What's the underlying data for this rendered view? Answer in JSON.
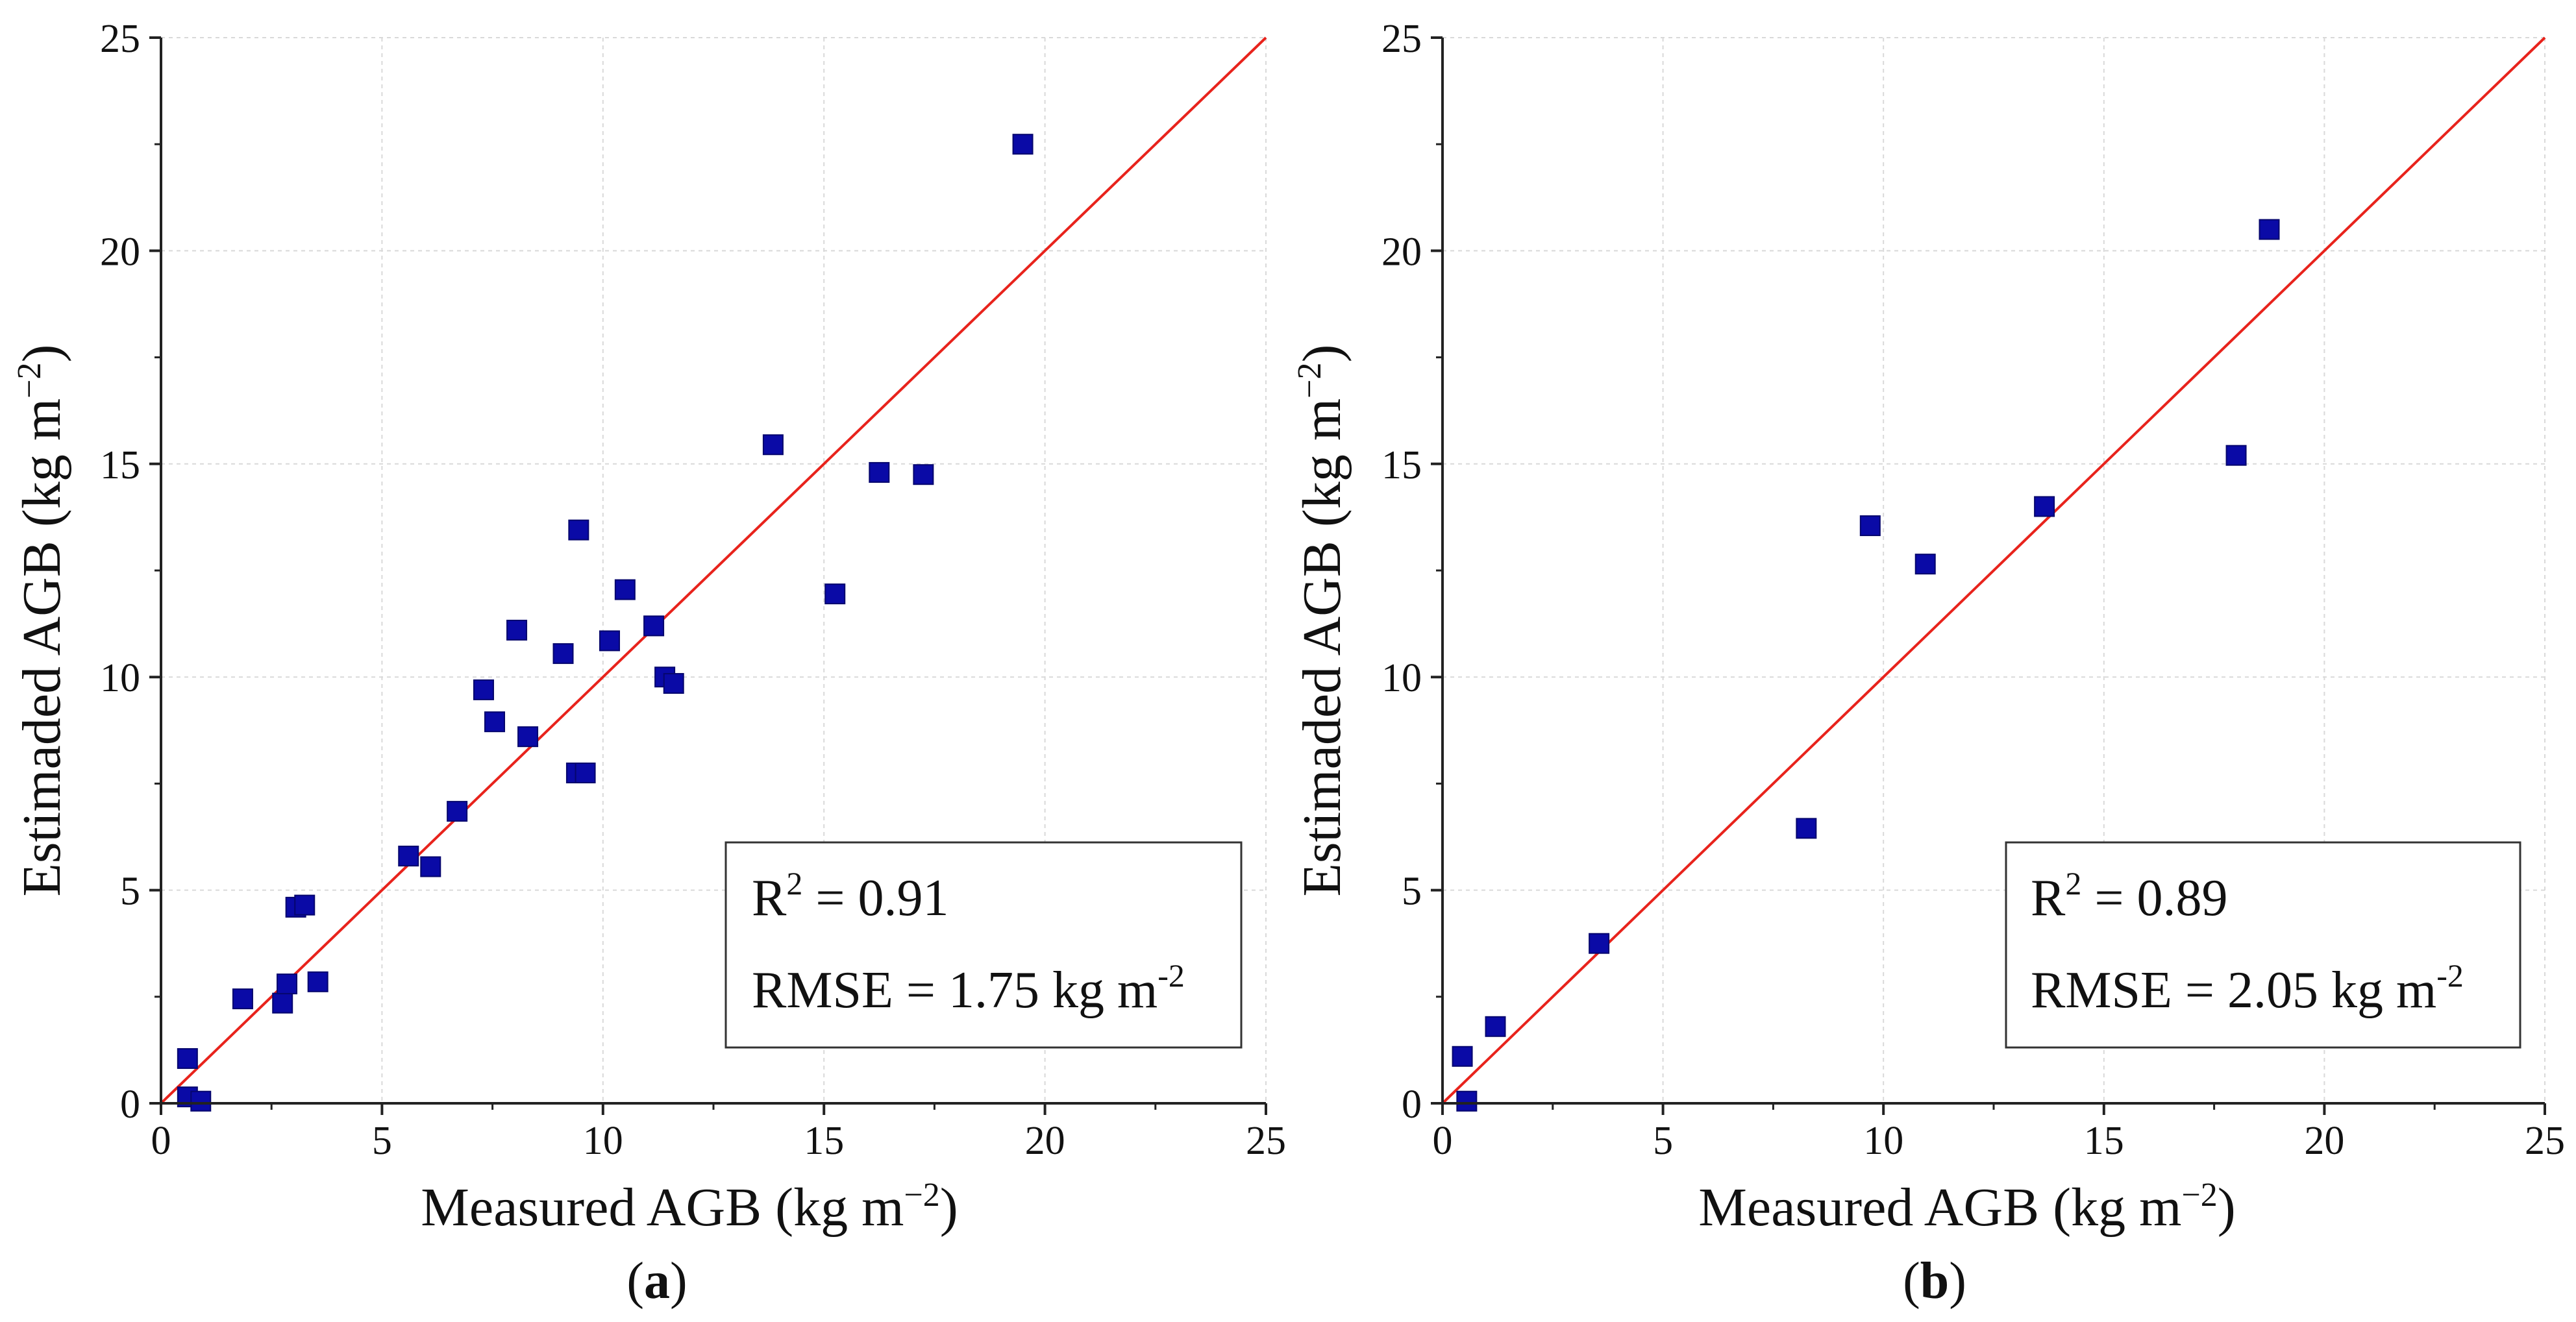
{
  "colors": {
    "marker": "#0a0aa6",
    "marker_edge": "#06066e",
    "fit_line": "#e8231c",
    "grid": "#d9d9d9",
    "axis": "#222222"
  },
  "chart_data": [
    {
      "type": "scatter",
      "panel_label": "a",
      "xlabel": "Measured AGB (kg m",
      "ylabel": "Estimaded AGB (kg m",
      "label_unit_exp": "−2",
      "label_close": ")",
      "xlim": [
        0,
        25
      ],
      "ylim": [
        0,
        25
      ],
      "x_ticks": [
        "0",
        "5",
        "10",
        "15",
        "20",
        "25"
      ],
      "y_ticks": [
        "0",
        "5",
        "10",
        "15",
        "20",
        "25"
      ],
      "grid": true,
      "reference_line": {
        "name": "1:1 line",
        "from": [
          0,
          0
        ],
        "to": [
          25,
          25
        ]
      },
      "points": [
        [
          0.6,
          1.05
        ],
        [
          0.6,
          0.15
        ],
        [
          0.9,
          0.05
        ],
        [
          1.85,
          2.45
        ],
        [
          2.75,
          2.35
        ],
        [
          2.85,
          2.8
        ],
        [
          3.05,
          4.6
        ],
        [
          3.25,
          4.65
        ],
        [
          3.55,
          2.85
        ],
        [
          5.6,
          5.8
        ],
        [
          6.1,
          5.55
        ],
        [
          6.7,
          6.85
        ],
        [
          7.3,
          9.7
        ],
        [
          7.55,
          8.95
        ],
        [
          8.05,
          11.1
        ],
        [
          8.3,
          8.6
        ],
        [
          9.1,
          10.55
        ],
        [
          9.4,
          7.75
        ],
        [
          9.45,
          13.45
        ],
        [
          9.6,
          7.75
        ],
        [
          10.15,
          10.85
        ],
        [
          10.5,
          12.05
        ],
        [
          11.15,
          11.2
        ],
        [
          11.4,
          10.0
        ],
        [
          11.6,
          9.85
        ],
        [
          13.85,
          15.45
        ],
        [
          15.25,
          11.95
        ],
        [
          16.25,
          14.8
        ],
        [
          17.25,
          14.75
        ],
        [
          19.5,
          22.5
        ]
      ],
      "stats": {
        "r2_label": "R",
        "r2_exp": "2",
        "r2_value": " = 0.91",
        "rmse_text": "RMSE = 1.75 kg m",
        "rmse_exp": "-2"
      }
    },
    {
      "type": "scatter",
      "panel_label": "b",
      "xlabel": "Measured AGB (kg m",
      "ylabel": "Estimaded AGB (kg m",
      "label_unit_exp": "−2",
      "label_close": ")",
      "xlim": [
        0,
        25
      ],
      "ylim": [
        0,
        25
      ],
      "x_ticks": [
        "0",
        "5",
        "10",
        "15",
        "20",
        "25"
      ],
      "y_ticks": [
        "0",
        "5",
        "10",
        "15",
        "20",
        "25"
      ],
      "grid": true,
      "reference_line": {
        "name": "1:1 line",
        "from": [
          0,
          0
        ],
        "to": [
          25,
          25
        ]
      },
      "points": [
        [
          0.45,
          1.1
        ],
        [
          0.55,
          0.05
        ],
        [
          1.2,
          1.8
        ],
        [
          3.55,
          3.75
        ],
        [
          8.25,
          6.45
        ],
        [
          9.7,
          13.55
        ],
        [
          10.95,
          12.65
        ],
        [
          13.65,
          14.0
        ],
        [
          18.0,
          15.2
        ],
        [
          18.75,
          20.5
        ]
      ],
      "stats": {
        "r2_label": "R",
        "r2_exp": "2",
        "r2_value": " = 0.89",
        "rmse_text": "RMSE = 2.05 kg m",
        "rmse_exp": "-2"
      }
    }
  ]
}
